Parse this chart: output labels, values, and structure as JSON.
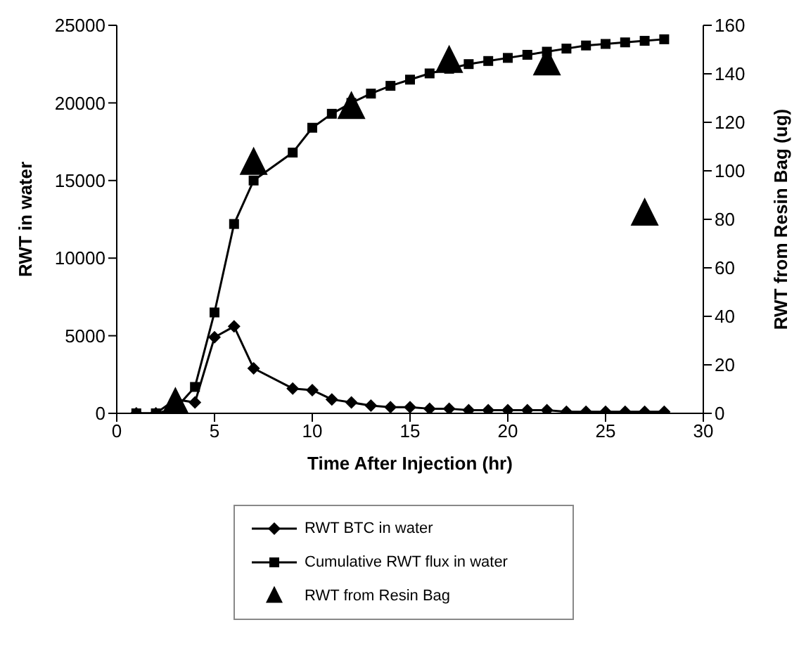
{
  "chart_data": {
    "type": "line",
    "xlabel": "Time After Injection (hr)",
    "ylabel": "RWT in water",
    "y2label": "RWT from Resin Bag (ug)",
    "xlim": [
      0,
      30
    ],
    "xticks": [
      0,
      5,
      10,
      15,
      20,
      25,
      30
    ],
    "ylim": [
      0,
      25000
    ],
    "yticks": [
      0,
      5000,
      10000,
      15000,
      20000,
      25000
    ],
    "y2lim": [
      0,
      160
    ],
    "y2ticks": [
      0,
      20,
      40,
      60,
      80,
      100,
      120,
      140,
      160
    ],
    "grid": false,
    "legend": "bottom",
    "series": [
      {
        "name": "RWT BTC in water",
        "marker": "diamond",
        "color": "#000000",
        "x": [
          1,
          2,
          3,
          4,
          5,
          6,
          7,
          9,
          10,
          11,
          12,
          13,
          14,
          15,
          16,
          17,
          18,
          19,
          20,
          21,
          22,
          23,
          24,
          25,
          26,
          27,
          28
        ],
        "values": [
          0,
          0,
          900,
          700,
          4900,
          5600,
          2900,
          1600,
          1500,
          900,
          700,
          500,
          400,
          400,
          300,
          300,
          200,
          200,
          200,
          200,
          200,
          100,
          100,
          100,
          100,
          100,
          100
        ]
      },
      {
        "name": "Cumulative RWT flux in water",
        "marker": "square",
        "color": "#000000",
        "x": [
          1,
          2,
          3,
          4,
          5,
          6,
          7,
          9,
          10,
          11,
          12,
          13,
          14,
          15,
          16,
          17,
          18,
          19,
          20,
          21,
          22,
          23,
          24,
          25,
          26,
          27,
          28
        ],
        "values": [
          0,
          0,
          300,
          1700,
          6500,
          12200,
          15000,
          16800,
          18400,
          19300,
          20000,
          20600,
          21100,
          21500,
          21900,
          22200,
          22500,
          22700,
          22900,
          23100,
          23300,
          23500,
          23700,
          23800,
          23900,
          24000,
          24100
        ]
      },
      {
        "name": "RWT from Resin Bag",
        "type": "scatter",
        "marker": "triangle",
        "axis": "y2",
        "color": "#000000",
        "x": [
          3,
          7,
          12,
          17,
          22,
          27
        ],
        "values": [
          4,
          103,
          126,
          145,
          144,
          82
        ]
      }
    ]
  }
}
